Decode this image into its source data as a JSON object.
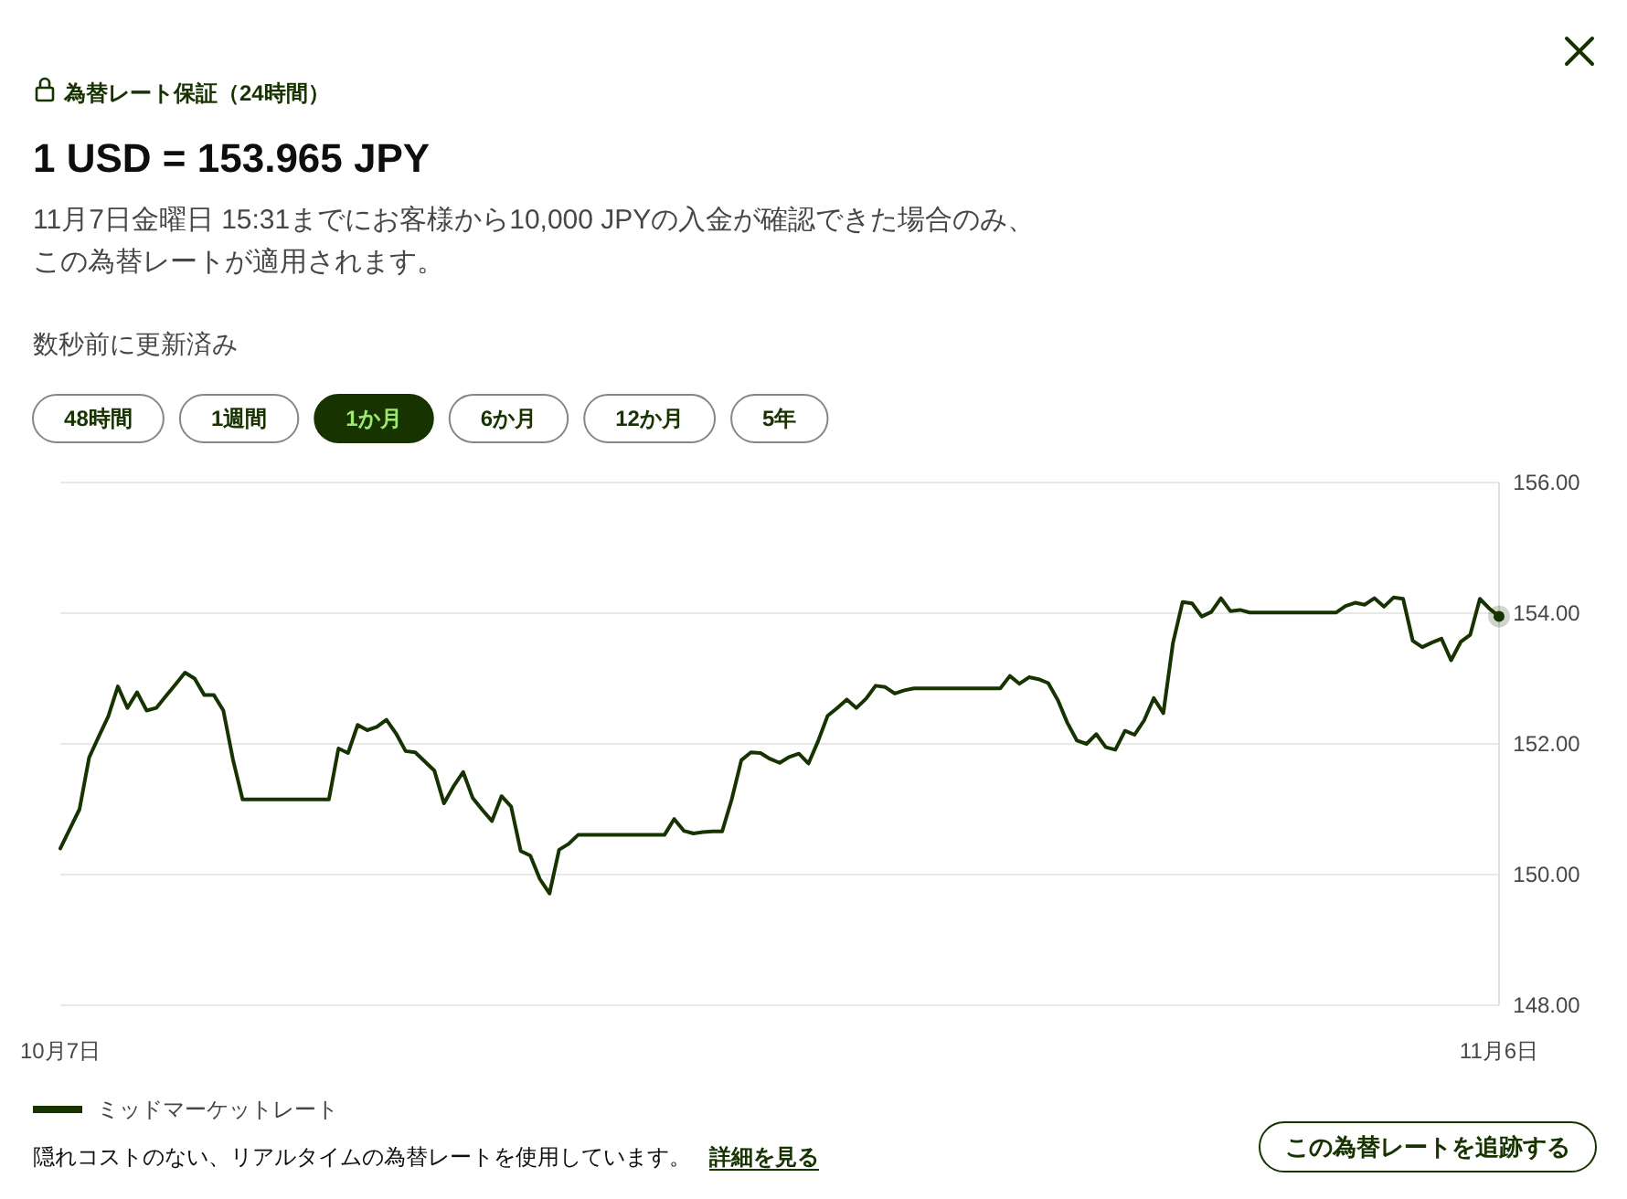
{
  "chart_data": {
    "type": "line",
    "title": "1 USD = 153.965 JPY",
    "subtitle": "11月7日金曜日 15:31までにお客様から10,000 JPYの入金が確認できた場合のみ、この為替レートが適用されます。",
    "annotations": [
      "為替レート保証（24時間）",
      "数秒前に更新済み",
      "48時間",
      "1週間",
      "1か月",
      "6か月",
      "12か月",
      "5年",
      "隠れコストのない、リアルタイムの為替レートを使用しています。",
      "詳細を見る",
      "この為替レートを追跡する"
    ],
    "categories": [
      "10月7日",
      null,
      null,
      null,
      null,
      null,
      null,
      null,
      null,
      null,
      null,
      null,
      null,
      null,
      null,
      null,
      null,
      null,
      null,
      null,
      null,
      null,
      null,
      null,
      null,
      null,
      null,
      null,
      null,
      null,
      null,
      null,
      null,
      null,
      null,
      null,
      null,
      null,
      null,
      null,
      null,
      null,
      null,
      null,
      null,
      null,
      null,
      null,
      null,
      null,
      null,
      null,
      null,
      null,
      null,
      null,
      null,
      null,
      null,
      null,
      null,
      null,
      null,
      null,
      null,
      null,
      null,
      null,
      null,
      null,
      null,
      null,
      null,
      null,
      null,
      null,
      null,
      null,
      null,
      null,
      null,
      null,
      null,
      null,
      null,
      null,
      null,
      null,
      null,
      null,
      null,
      null,
      null,
      null,
      null,
      null,
      null,
      null,
      null,
      null,
      null,
      null,
      null,
      null,
      null,
      null,
      null,
      null,
      null,
      null,
      null,
      null,
      null,
      null,
      null,
      null,
      null,
      null,
      null,
      null,
      null,
      null,
      null,
      null,
      null,
      null,
      null,
      null,
      null,
      null,
      null,
      null,
      null,
      null,
      null,
      null,
      null,
      null,
      null,
      null,
      null,
      null,
      null,
      null,
      null,
      null,
      null,
      null,
      null,
      null,
      "11月6日"
    ],
    "series": [
      {
        "name": "ミッドマーケットレート",
        "color": "#163300",
        "values": [
          150.4,
          150.7,
          151.0,
          151.79,
          152.11,
          152.42,
          152.88,
          152.55,
          152.79,
          152.51,
          152.55,
          152.73,
          152.91,
          153.09,
          153.0,
          152.75,
          152.75,
          152.51,
          151.76,
          151.15,
          151.15,
          151.15,
          151.15,
          151.15,
          151.15,
          151.15,
          151.15,
          151.15,
          151.15,
          151.93,
          151.86,
          152.29,
          152.21,
          152.26,
          152.37,
          152.16,
          151.89,
          151.87,
          151.73,
          151.59,
          151.09,
          151.35,
          151.57,
          151.17,
          150.99,
          150.82,
          151.2,
          151.04,
          150.36,
          150.29,
          149.93,
          149.71,
          150.38,
          150.47,
          150.61,
          150.61,
          150.61,
          150.61,
          150.61,
          150.61,
          150.61,
          150.61,
          150.61,
          150.61,
          150.85,
          150.67,
          150.63,
          150.65,
          150.66,
          150.66,
          151.15,
          151.75,
          151.87,
          151.86,
          151.77,
          151.71,
          151.8,
          151.85,
          151.7,
          152.04,
          152.43,
          152.55,
          152.68,
          152.55,
          152.69,
          152.89,
          152.87,
          152.77,
          152.82,
          152.85,
          152.85,
          152.85,
          152.85,
          152.85,
          152.85,
          152.85,
          152.85,
          152.85,
          152.85,
          153.04,
          152.92,
          153.02,
          152.99,
          152.93,
          152.67,
          152.32,
          152.05,
          152.0,
          152.15,
          151.95,
          151.91,
          152.2,
          152.14,
          152.36,
          152.7,
          152.47,
          153.54,
          154.17,
          154.15,
          153.95,
          154.02,
          154.23,
          154.03,
          154.05,
          154.01,
          154.01,
          154.01,
          154.01,
          154.01,
          154.01,
          154.01,
          154.01,
          154.01,
          154.01,
          154.11,
          154.16,
          154.13,
          154.23,
          154.1,
          154.24,
          154.22,
          153.58,
          153.48,
          153.55,
          153.61,
          153.28,
          153.56,
          153.67,
          154.22,
          154.07,
          153.95
        ]
      }
    ],
    "ylim": [
      148,
      156
    ],
    "yticks": [
      {
        "value": 148,
        "label": "148.00"
      },
      {
        "value": 150,
        "label": "150.00"
      },
      {
        "value": 152,
        "label": "152.00"
      },
      {
        "value": 154,
        "label": "154.00"
      },
      {
        "value": 156,
        "label": "156.00"
      }
    ],
    "grid": "y",
    "legend": "bottom left",
    "marker": "none",
    "line_style": "solid"
  }
}
